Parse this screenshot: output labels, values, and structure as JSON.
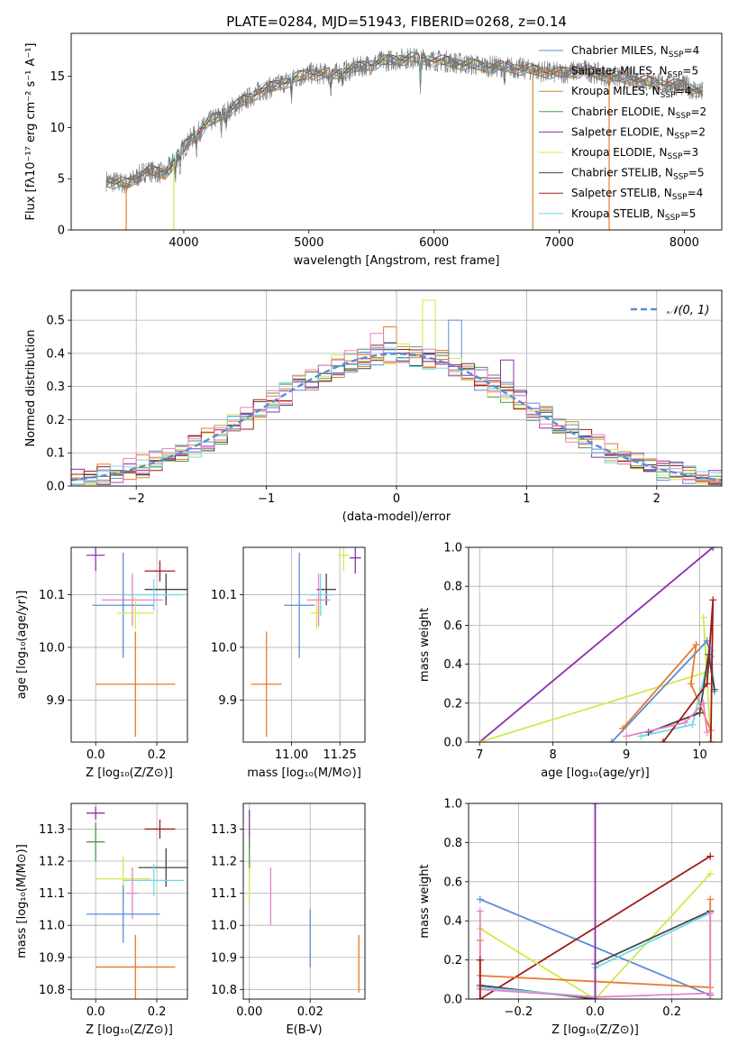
{
  "figure_title": "PLATE=0284, MJD=51943, FIBERID=0268, z=0.14",
  "colors": {
    "chabrier_miles": "#5b8bd8",
    "salpeter_miles": "#e87b2a",
    "kroupa_miles": "#c98a2a",
    "chabrier_elodie": "#4f9a4f",
    "salpeter_elodie": "#8e2fae",
    "kroupa_elodie": "#d4e84a",
    "chabrier_stelib": "#444444",
    "salpeter_stelib": "#a11a1a",
    "kroupa_stelib": "#6fd8e8",
    "pink": "#e882c8",
    "grid": "#b0b0b0",
    "normal": "#5b8bd8"
  },
  "chart_data": [
    {
      "id": "spectrum",
      "type": "line",
      "title": "PLATE=0284, MJD=51943, FIBERID=0268, z=0.14",
      "xlabel": "wavelength [Angstrom, rest frame]",
      "ylabel": "Flux [fλ10⁻¹⁷ erg cm⁻² s⁻¹ A⁻¹]",
      "xlim": [
        3100,
        8300
      ],
      "ylim": [
        0,
        19.2
      ],
      "xticks": [
        4000,
        5000,
        6000,
        7000,
        8000
      ],
      "yticks": [
        0,
        5,
        10,
        15
      ],
      "grid": false,
      "legend_position": "right",
      "legend": [
        {
          "key": "chabrier_miles",
          "label": "Chabrier MILES, N",
          "sub": "SSP",
          "tail": "=4"
        },
        {
          "key": "salpeter_miles",
          "label": "Salpeter MILES, N",
          "sub": "SSP",
          "tail": "=5"
        },
        {
          "key": "kroupa_miles",
          "label": "Kroupa MILES, N",
          "sub": "SSP",
          "tail": "=4"
        },
        {
          "key": "chabrier_elodie",
          "label": "Chabrier ELODIE, N",
          "sub": "SSP",
          "tail": "=2"
        },
        {
          "key": "salpeter_elodie",
          "label": "Salpeter ELODIE, N",
          "sub": "SSP",
          "tail": "=2"
        },
        {
          "key": "kroupa_elodie",
          "label": "Kroupa ELODIE, N",
          "sub": "SSP",
          "tail": "=3"
        },
        {
          "key": "chabrier_stelib",
          "label": "Chabrier STELIB, N",
          "sub": "SSP",
          "tail": "=5"
        },
        {
          "key": "salpeter_stelib",
          "label": "Salpeter STELIB, N",
          "sub": "SSP",
          "tail": "=4"
        },
        {
          "key": "kroupa_stelib",
          "label": "Kroupa STELIB, N",
          "sub": "SSP",
          "tail": "=5"
        }
      ],
      "continuum_points": [
        [
          3380,
          4.8
        ],
        [
          3550,
          4.5
        ],
        [
          3700,
          5.8
        ],
        [
          3850,
          5.5
        ],
        [
          3950,
          7.2
        ],
        [
          4050,
          8.8
        ],
        [
          4200,
          10.5
        ],
        [
          4400,
          12.0
        ],
        [
          4600,
          13.5
        ],
        [
          4800,
          14.4
        ],
        [
          5000,
          15.3
        ],
        [
          5200,
          15.2
        ],
        [
          5400,
          15.9
        ],
        [
          5600,
          16.5
        ],
        [
          5800,
          16.8
        ],
        [
          6000,
          16.6
        ],
        [
          6200,
          16.3
        ],
        [
          6400,
          16.0
        ],
        [
          6600,
          15.9
        ],
        [
          6800,
          15.6
        ],
        [
          7000,
          15.3
        ],
        [
          7200,
          15.6
        ],
        [
          7400,
          15.0
        ],
        [
          7600,
          14.7
        ],
        [
          7800,
          14.3
        ],
        [
          8000,
          14.1
        ],
        [
          8150,
          13.4
        ]
      ],
      "absorption_lines": [
        [
          3934,
          2.5
        ],
        [
          3969,
          2.5
        ],
        [
          4102,
          1.5
        ],
        [
          4300,
          1.8
        ],
        [
          4340,
          1.3
        ],
        [
          4861,
          2.0
        ],
        [
          5175,
          2.5
        ],
        [
          5270,
          1.5
        ],
        [
          5890,
          4.0
        ],
        [
          6563,
          2.0
        ]
      ],
      "model_dropouts": [
        {
          "key": "salpeter_miles",
          "x": 3540
        },
        {
          "key": "kroupa_elodie",
          "x": 3920
        },
        {
          "key": "kroupa_miles",
          "x": 6790
        },
        {
          "key": "salpeter_miles",
          "x": 7400
        }
      ]
    },
    {
      "id": "residual_hist",
      "type": "histogram",
      "xlabel": "(data-model)/error",
      "ylabel": "Normed distribution",
      "xlim": [
        -2.5,
        2.5
      ],
      "ylim": [
        0,
        0.59
      ],
      "xticks": [
        -2,
        -1,
        0,
        1,
        2
      ],
      "yticks": [
        0.0,
        0.1,
        0.2,
        0.3,
        0.4,
        0.5
      ],
      "grid": true,
      "legend_position": "top-right",
      "normal_label": "𝒩(0, 1)",
      "bin_width": 0.1,
      "series_keys": [
        "chabrier_miles",
        "salpeter_miles",
        "kroupa_miles",
        "chabrier_elodie",
        "salpeter_elodie",
        "kroupa_elodie",
        "chabrier_stelib",
        "salpeter_stelib",
        "kroupa_stelib",
        "pink"
      ],
      "spikes": [
        [
          -0.05,
          0.48,
          "salpeter_miles"
        ],
        [
          0.25,
          0.56,
          "kroupa_elodie"
        ],
        [
          0.45,
          0.5,
          "chabrier_miles"
        ],
        [
          0.85,
          0.38,
          "salpeter_elodie"
        ],
        [
          -0.15,
          0.46,
          "pink"
        ]
      ]
    },
    {
      "id": "age_vs_z",
      "type": "errorbar",
      "xlabel": "Z [log₁₀(Z/Z⊙)]",
      "ylabel": "age  [log₁₀(age/yr)]",
      "xlim": [
        -0.08,
        0.3
      ],
      "ylim": [
        9.82,
        10.19
      ],
      "xticks": [
        0.0,
        0.2
      ],
      "yticks": [
        9.9,
        10.0,
        10.1
      ],
      "grid": true,
      "points": [
        {
          "key": "salpeter_elodie",
          "x": 0.0,
          "xerr": 0.03,
          "y": 10.175,
          "yerr": 0.03
        },
        {
          "key": "salpeter_stelib",
          "x": 0.21,
          "xerr": 0.05,
          "y": 10.145,
          "yerr": 0.02
        },
        {
          "key": "chabrier_stelib",
          "x": 0.23,
          "xerr": 0.07,
          "y": 10.11,
          "yerr": 0.03
        },
        {
          "key": "kroupa_stelib",
          "x": 0.19,
          "xerr": 0.09,
          "y": 10.1,
          "yerr": 0.03
        },
        {
          "key": "pink",
          "x": 0.12,
          "xerr": 0.1,
          "y": 10.09,
          "yerr": 0.05
        },
        {
          "key": "chabrier_miles",
          "x": 0.09,
          "xerr": 0.1,
          "y": 10.08,
          "yerr": 0.1
        },
        {
          "key": "kroupa_elodie",
          "x": 0.13,
          "xerr": 0.06,
          "y": 10.065,
          "yerr": 0.03
        },
        {
          "key": "salpeter_miles",
          "x": 0.13,
          "xerr": 0.13,
          "y": 9.93,
          "yerr": 0.1
        }
      ]
    },
    {
      "id": "age_vs_mass",
      "type": "errorbar",
      "xlabel": "mass [log₁₀(M/M⊙)]",
      "ylabel": "",
      "xlim": [
        10.75,
        11.38
      ],
      "ylim": [
        9.82,
        10.19
      ],
      "xticks": [
        11.0,
        11.25
      ],
      "yticks": [
        9.9,
        10.0,
        10.1
      ],
      "grid": true,
      "points": [
        {
          "key": "salpeter_elodie",
          "x": 11.33,
          "xerr": 0.03,
          "y": 10.17,
          "yerr": 0.03
        },
        {
          "key": "kroupa_elodie",
          "x": 11.27,
          "xerr": 0.03,
          "y": 10.175,
          "yerr": 0.03
        },
        {
          "key": "chabrier_stelib",
          "x": 11.18,
          "xerr": 0.05,
          "y": 10.11,
          "yerr": 0.03
        },
        {
          "key": "kroupa_stelib",
          "x": 11.15,
          "xerr": 0.06,
          "y": 10.1,
          "yerr": 0.04
        },
        {
          "key": "pink",
          "x": 11.14,
          "xerr": 0.06,
          "y": 10.09,
          "yerr": 0.05
        },
        {
          "key": "chabrier_miles",
          "x": 11.04,
          "xerr": 0.08,
          "y": 10.08,
          "yerr": 0.1
        },
        {
          "key": "kroupa_elodie",
          "x": 11.13,
          "xerr": 0.03,
          "y": 10.065,
          "yerr": 0.03
        },
        {
          "key": "salpeter_miles",
          "x": 10.87,
          "xerr": 0.08,
          "y": 9.93,
          "yerr": 0.1
        }
      ]
    },
    {
      "id": "massweight_vs_age",
      "type": "line",
      "xlabel": "age  [log₁₀(age/yr)]",
      "ylabel": "mass weight",
      "xlim": [
        6.85,
        10.3
      ],
      "ylim": [
        0,
        1.0
      ],
      "xticks": [
        7,
        8,
        9,
        10
      ],
      "yticks": [
        0.0,
        0.2,
        0.4,
        0.6,
        0.8,
        1.0
      ],
      "grid": true,
      "series": [
        {
          "key": "salpeter_elodie",
          "x": [
            7.0,
            10.18
          ],
          "y": [
            0.0,
            1.0
          ]
        },
        {
          "key": "kroupa_elodie",
          "x": [
            7.0,
            10.1,
            10.05,
            10.15
          ],
          "y": [
            0.0,
            0.36,
            0.64,
            0.0
          ]
        },
        {
          "key": "chabrier_miles",
          "x": [
            8.8,
            10.1,
            10.15,
            10.2
          ],
          "y": [
            0.0,
            0.52,
            0.44,
            0.26
          ]
        },
        {
          "key": "salpeter_miles",
          "x": [
            8.95,
            9.95,
            9.88,
            10.15
          ],
          "y": [
            0.07,
            0.5,
            0.3,
            0.06
          ]
        },
        {
          "key": "kroupa_stelib",
          "x": [
            9.2,
            9.9,
            10.15,
            10.2
          ],
          "y": [
            0.03,
            0.09,
            0.47,
            0.26
          ]
        },
        {
          "key": "chabrier_stelib",
          "x": [
            9.3,
            10.0,
            10.12,
            10.2
          ],
          "y": [
            0.05,
            0.15,
            0.45,
            0.27
          ]
        },
        {
          "key": "salpeter_stelib",
          "x": [
            9.5,
            10.1,
            10.18,
            10.15
          ],
          "y": [
            0.0,
            0.3,
            0.73,
            0.0
          ]
        },
        {
          "key": "pink",
          "x": [
            9.0,
            9.8,
            10.05,
            10.1
          ],
          "y": [
            0.03,
            0.1,
            0.2,
            0.05
          ]
        }
      ]
    },
    {
      "id": "mass_vs_z",
      "type": "errorbar",
      "xlabel": "Z [log₁₀(Z/Z⊙)]",
      "ylabel": "mass [log₁₀(M/M⊙)]",
      "xlim": [
        -0.08,
        0.3
      ],
      "ylim": [
        10.77,
        11.38
      ],
      "xticks": [
        0.0,
        0.2
      ],
      "yticks": [
        10.8,
        10.9,
        11.0,
        11.1,
        11.2,
        11.3
      ],
      "grid": true,
      "points": [
        {
          "key": "salpeter_elodie",
          "x": 0.0,
          "xerr": 0.03,
          "y": 11.35,
          "yerr": 0.02
        },
        {
          "key": "salpeter_stelib",
          "x": 0.21,
          "xerr": 0.05,
          "y": 11.3,
          "yerr": 0.03
        },
        {
          "key": "chabrier_elodie",
          "x": 0.0,
          "xerr": 0.03,
          "y": 11.26,
          "yerr": 0.06
        },
        {
          "key": "chabrier_stelib",
          "x": 0.23,
          "xerr": 0.09,
          "y": 11.18,
          "yerr": 0.06
        },
        {
          "key": "kroupa_elodie",
          "x": 0.09,
          "xerr": 0.09,
          "y": 11.145,
          "yerr": 0.07
        },
        {
          "key": "kroupa_stelib",
          "x": 0.19,
          "xerr": 0.1,
          "y": 11.14,
          "yerr": 0.05
        },
        {
          "key": "pink",
          "x": 0.12,
          "xerr": 0.02,
          "y": 11.1,
          "yerr": 0.08
        },
        {
          "key": "chabrier_miles",
          "x": 0.09,
          "xerr": 0.12,
          "y": 11.035,
          "yerr": 0.09
        },
        {
          "key": "salpeter_miles",
          "x": 0.13,
          "xerr": 0.13,
          "y": 10.87,
          "yerr": 0.1
        }
      ]
    },
    {
      "id": "mass_vs_ebv",
      "type": "errorbar",
      "xlabel": "E(B-V)",
      "ylabel": "",
      "xlim": [
        -0.002,
        0.038
      ],
      "ylim": [
        10.77,
        11.38
      ],
      "xticks": [
        0.0,
        0.02
      ],
      "yticks": [
        10.8,
        10.9,
        11.0,
        11.1,
        11.2,
        11.3
      ],
      "grid": true,
      "points": [
        {
          "key": "salpeter_elodie",
          "x": 0.0,
          "xerr": 0.0,
          "y": 11.3,
          "yerr": 0.06
        },
        {
          "key": "chabrier_elodie",
          "x": 0.0,
          "xerr": 0.0,
          "y": 11.22,
          "yerr": 0.06
        },
        {
          "key": "kroupa_elodie",
          "x": 0.0,
          "xerr": 0.0,
          "y": 11.12,
          "yerr": 0.06
        },
        {
          "key": "pink",
          "x": 0.007,
          "xerr": 0.0,
          "y": 11.09,
          "yerr": 0.09
        },
        {
          "key": "chabrier_miles",
          "x": 0.02,
          "xerr": 0.0,
          "y": 10.96,
          "yerr": 0.09
        },
        {
          "key": "salpeter_miles",
          "x": 0.036,
          "xerr": 0.0,
          "y": 10.88,
          "yerr": 0.09
        }
      ]
    },
    {
      "id": "massweight_vs_z",
      "type": "line",
      "xlabel": "Z [log₁₀(Z/Z⊙)]",
      "ylabel": "mass weight",
      "xlim": [
        -0.33,
        0.33
      ],
      "ylim": [
        0,
        1.0
      ],
      "xticks": [
        -0.2,
        0.0,
        0.2
      ],
      "yticks": [
        0.0,
        0.2,
        0.4,
        0.6,
        0.8,
        1.0
      ],
      "grid": true,
      "series": [
        {
          "key": "chabrier_miles",
          "x": [
            -0.3,
            0.3
          ],
          "y": [
            0.51,
            0.02
          ]
        },
        {
          "key": "salpeter_stelib",
          "x": [
            -0.3,
            0.3
          ],
          "y": [
            0.0,
            0.73
          ]
        },
        {
          "key": "kroupa_elodie",
          "x": [
            -0.3,
            0.0,
            0.3
          ],
          "y": [
            0.36,
            0.0,
            0.64
          ]
        },
        {
          "key": "salpeter_miles",
          "x": [
            -0.3,
            0.3
          ],
          "y": [
            0.12,
            0.06
          ]
        },
        {
          "key": "chabrier_stelib",
          "x": [
            -0.3,
            0.0,
            0.0,
            0.3
          ],
          "y": [
            0.07,
            0.0,
            0.18,
            0.45
          ]
        },
        {
          "key": "kroupa_stelib",
          "x": [
            -0.3,
            0.0,
            0.0,
            0.3
          ],
          "y": [
            0.06,
            0.01,
            0.16,
            0.44
          ]
        },
        {
          "key": "pink",
          "x": [
            -0.3,
            0.0,
            0.3
          ],
          "y": [
            0.05,
            0.01,
            0.03
          ]
        },
        {
          "key": "salpeter_elodie",
          "x": [
            0.0,
            0.0
          ],
          "y": [
            0.0,
            1.0
          ]
        },
        {
          "key": "salpeter_miles",
          "x": [
            -0.3,
            -0.3
          ],
          "y": [
            0.0,
            0.3
          ]
        },
        {
          "key": "pink",
          "x": [
            -0.3,
            -0.3
          ],
          "y": [
            0.2,
            0.45
          ]
        },
        {
          "key": "salpeter_stelib",
          "x": [
            -0.3,
            -0.3
          ],
          "y": [
            0.0,
            0.2
          ]
        },
        {
          "key": "salpeter_miles",
          "x": [
            0.3,
            0.3
          ],
          "y": [
            0.0,
            0.51
          ]
        },
        {
          "key": "pink",
          "x": [
            0.3,
            0.3
          ],
          "y": [
            0.0,
            0.44
          ]
        }
      ]
    }
  ]
}
